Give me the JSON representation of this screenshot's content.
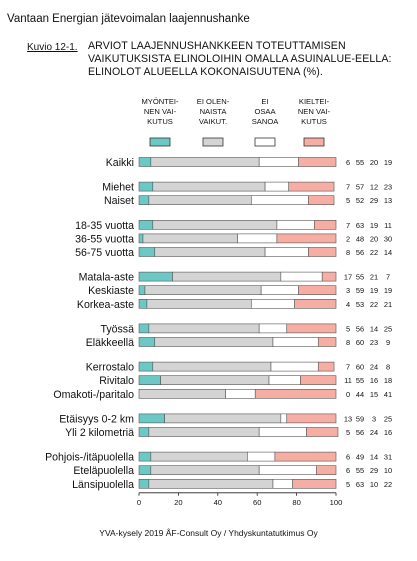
{
  "header": {
    "title": "Vantaan Energian jätevoimalan laajennushanke"
  },
  "figure": {
    "label": "Kuvio 12-1.",
    "title": "ARVIOT LAAJENNUSHANKKEEN TOTEUTTAMISEN VAIKUTUKSISTA ELINOLOIHIN OMALLA ASUINALUE-EELLA: ELINOLOT ALUEELLA KOKONAISUUTENA (%)."
  },
  "footer": {
    "source": "YVA-kysely 2019 ÅF-Consult Oy / Yhdyskuntatutkimus Oy"
  },
  "chart_data": {
    "type": "bar",
    "stacked": true,
    "orientation": "horizontal",
    "xlim": [
      0,
      100
    ],
    "x_ticks": [
      0,
      20,
      40,
      60,
      80,
      100
    ],
    "legend_position": "top",
    "series": [
      {
        "name": "MYÖNTEI-\nNEN VAI-\nKUTUS",
        "color": "#6cc8c4"
      },
      {
        "name": "EI OLEN-\nNAISTA\nVAIKUT.",
        "color": "#d4d4d4"
      },
      {
        "name": "EI\nOSAA\nSANOA",
        "color": "#ffffff"
      },
      {
        "name": "KIELTEI-\nNEN VAI-\nKUTUS",
        "color": "#f6aea4"
      }
    ],
    "categories": [
      {
        "label": "Kaikki",
        "values": [
          6,
          55,
          20,
          19
        ],
        "group": 0
      },
      {
        "label": "Miehet",
        "values": [
          7,
          57,
          12,
          23
        ],
        "group": 1
      },
      {
        "label": "Naiset",
        "values": [
          5,
          52,
          29,
          13
        ],
        "group": 1
      },
      {
        "label": "18-35 vuotta",
        "values": [
          7,
          63,
          19,
          11
        ],
        "group": 2
      },
      {
        "label": "36-55 vuotta",
        "values": [
          2,
          48,
          20,
          30
        ],
        "group": 2
      },
      {
        "label": "56-75 vuotta",
        "values": [
          8,
          56,
          22,
          14
        ],
        "group": 2
      },
      {
        "label": "Matala-aste",
        "values": [
          17,
          55,
          21,
          7
        ],
        "group": 3
      },
      {
        "label": "Keskiaste",
        "values": [
          3,
          59,
          19,
          19
        ],
        "group": 3
      },
      {
        "label": "Korkea-aste",
        "values": [
          4,
          53,
          22,
          21
        ],
        "group": 3
      },
      {
        "label": "Työssä",
        "values": [
          5,
          56,
          14,
          25
        ],
        "group": 4
      },
      {
        "label": "Eläkkeellä",
        "values": [
          8,
          60,
          23,
          9
        ],
        "group": 4
      },
      {
        "label": "Kerrostalo",
        "values": [
          7,
          60,
          24,
          8
        ],
        "group": 5
      },
      {
        "label": "Rivitalo",
        "values": [
          11,
          55,
          16,
          18
        ],
        "group": 5
      },
      {
        "label": "Omakoti-/paritalo",
        "values": [
          0,
          44,
          15,
          41
        ],
        "group": 5
      },
      {
        "label": "Etäisyys 0-2 km",
        "values": [
          13,
          59,
          3,
          25
        ],
        "group": 6
      },
      {
        "label": "Yli 2 kilometriä",
        "values": [
          5,
          56,
          24,
          16
        ],
        "group": 6
      },
      {
        "label": "Pohjois-/itäpuolella",
        "values": [
          6,
          49,
          14,
          31
        ],
        "group": 7
      },
      {
        "label": "Eteläpuolella",
        "values": [
          6,
          55,
          29,
          10
        ],
        "group": 7
      },
      {
        "label": "Länsipuolella",
        "values": [
          5,
          63,
          10,
          22
        ],
        "group": 7
      }
    ]
  }
}
